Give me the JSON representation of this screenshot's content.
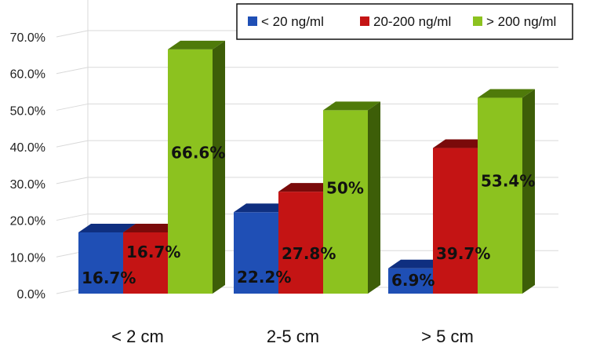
{
  "chart_data": {
    "type": "bar",
    "categories": [
      "< 2 cm",
      "2-5 cm",
      "> 5 cm"
    ],
    "series": [
      {
        "name": "< 20 ng/ml",
        "values": [
          16.7,
          22.2,
          6.9
        ],
        "labels": [
          "16.7%",
          "22.2%",
          "6.9%"
        ],
        "color": "#1f4fb5",
        "top_color": "#0f2f80",
        "side_color": "#0c2466"
      },
      {
        "name": "20-200 ng/ml",
        "values": [
          16.7,
          27.8,
          39.7
        ],
        "labels": [
          "16.7%",
          "27.8%",
          "39.7%"
        ],
        "color": "#c41414",
        "top_color": "#7a0a0a",
        "side_color": "#5e0606"
      },
      {
        "name": "> 200 ng/ml",
        "values": [
          66.6,
          50,
          53.4
        ],
        "labels": [
          "66.6%",
          "50%",
          "53.4%"
        ],
        "color": "#8cc21f",
        "top_color": "#4f7a0a",
        "side_color": "#3d5e08"
      }
    ],
    "y_ticks": [
      "0.0%",
      "10.0%",
      "20.0%",
      "30.0%",
      "40.0%",
      "50.0%",
      "60.0%",
      "70.0%"
    ],
    "ylim": [
      0,
      70
    ],
    "grid": true,
    "legend_position": "top-right",
    "title": "",
    "xlabel": "",
    "ylabel": ""
  }
}
